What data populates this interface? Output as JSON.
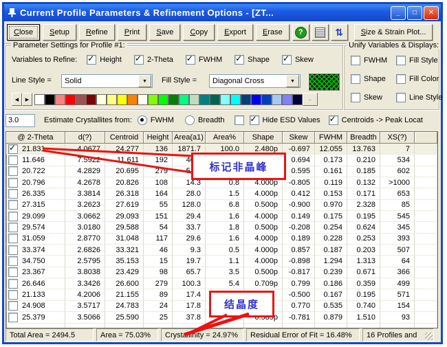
{
  "window": {
    "title": "Current Profile Parameters & Refinement Options - [ZT...",
    "controls": {
      "minimize": "_",
      "maximize": "□",
      "close": "✕"
    }
  },
  "toolbar": {
    "buttons": [
      {
        "name": "close-button",
        "label": "Close",
        "default": true
      },
      {
        "name": "setup-button",
        "label": "Setup"
      },
      {
        "name": "refine-button",
        "label": "Refine"
      },
      {
        "name": "print-button",
        "label": "Print"
      },
      {
        "name": "save-button",
        "label": "Save"
      },
      {
        "name": "copy-button",
        "label": "Copy"
      },
      {
        "name": "export-button",
        "label": "Export"
      },
      {
        "name": "erase-button",
        "label": "Erase"
      }
    ],
    "help_glyph": "?",
    "size_strain_label": "Size & Strain Plot..."
  },
  "param_group": {
    "title": "Parameter Settings for Profile #1:",
    "variables_label": "Variables to Refine:",
    "variables": [
      {
        "label": "Height",
        "checked": true
      },
      {
        "label": "2-Theta",
        "checked": true
      },
      {
        "label": "FWHM",
        "checked": true
      },
      {
        "label": "Shape",
        "checked": true
      },
      {
        "label": "Skew",
        "checked": true
      }
    ],
    "line_style_label": "Line Style =",
    "line_style_value": "Solid",
    "fill_style_label": "Fill Style =",
    "fill_style_value": "Diagonal Cross",
    "swatch": {
      "bg": "#000000",
      "line": "#00B400"
    },
    "palette": [
      "#FFFFFF",
      "#000000",
      "#FF8080",
      "#FF0000",
      "#A05050",
      "#800000",
      "#FFFFE0",
      "#FFFF80",
      "#FFFF00",
      "#FF8000",
      "#FFFFF0",
      "#80FF00",
      "#00FF00",
      "#008000",
      "#00FF80",
      "#C0DCC0",
      "#008080",
      "#006450",
      "#80FFFF",
      "#00FFFF",
      "#004080",
      "#0000FF",
      "#0040C0",
      "#A8C8F0",
      "#8080FF",
      "#000040"
    ],
    "palette_more_label": ".."
  },
  "unify_group": {
    "title": "Unify Variables & Displays:",
    "items": [
      {
        "label": "FWHM",
        "checked": false
      },
      {
        "label": "Fill Style",
        "checked": false
      },
      {
        "label": "Shape",
        "checked": false
      },
      {
        "label": "Fill Color",
        "checked": false
      },
      {
        "label": "Skew",
        "checked": false
      },
      {
        "label": "Line Style",
        "checked": false
      }
    ]
  },
  "estimate_row": {
    "value": "3.0",
    "label": "Estimate Crystallites from:",
    "radios": [
      {
        "label": "FWHM",
        "selected": true
      },
      {
        "label": "Breadth",
        "selected": false
      }
    ],
    "lone_checkbox_checked": false,
    "hide_esd": {
      "label": "Hide ESD Values",
      "checked": true
    },
    "centroids": {
      "label": "Centroids -> Peak Locat",
      "checked": true
    }
  },
  "table": {
    "headers": [
      "@ 2-Theta",
      "d(?)",
      "Centroid",
      "Height",
      "Area(a1)",
      "Area%",
      "Shape",
      "Skew",
      "FWHM",
      "Breadth",
      "XS(?)"
    ],
    "rows": [
      {
        "checked": true,
        "cells": [
          "21.831",
          "4.0677",
          "24.277",
          "136",
          "1871.7",
          "100.0",
          "2.480p",
          "-0.697",
          "12.055",
          "13.763",
          "7"
        ]
      },
      {
        "checked": false,
        "cells": [
          "11.646",
          "7.5922",
          "11.611",
          "192",
          "40.3",
          "",
          "",
          "0.694",
          "0.173",
          "0.210",
          "534"
        ]
      },
      {
        "checked": false,
        "cells": [
          "20.722",
          "4.2829",
          "20.695",
          "279",
          "51.5",
          "",
          "",
          "0.595",
          "0.161",
          "0.185",
          "602"
        ]
      },
      {
        "checked": false,
        "cells": [
          "20.796",
          "4.2678",
          "20.826",
          "108",
          "14.3",
          "0.8",
          "4.000p",
          "-0.805",
          "0.119",
          "0.132",
          ">1000"
        ]
      },
      {
        "checked": false,
        "cells": [
          "26.335",
          "3.3814",
          "26.318",
          "164",
          "28.0",
          "1.5",
          "4.000p",
          "0.412",
          "0.153",
          "0.171",
          "653"
        ]
      },
      {
        "checked": false,
        "cells": [
          "27.315",
          "3.2623",
          "27.619",
          "55",
          "128.0",
          "6.8",
          "0.500p",
          "-0.900",
          "0.970",
          "2.328",
          "85"
        ]
      },
      {
        "checked": false,
        "cells": [
          "29.099",
          "3.0662",
          "29.093",
          "151",
          "29.4",
          "1.6",
          "4.000p",
          "0.149",
          "0.175",
          "0.195",
          "545"
        ]
      },
      {
        "checked": false,
        "cells": [
          "29.574",
          "3.0180",
          "29.588",
          "54",
          "33.7",
          "1.8",
          "0.500p",
          "-0.208",
          "0.254",
          "0.624",
          "345"
        ]
      },
      {
        "checked": false,
        "cells": [
          "31.059",
          "2.8770",
          "31.048",
          "117",
          "29.6",
          "1.6",
          "4.000p",
          "0.189",
          "0.228",
          "0.253",
          "393"
        ]
      },
      {
        "checked": false,
        "cells": [
          "33.374",
          "2.6826",
          "33.321",
          "46",
          "9.3",
          "0.5",
          "4.000p",
          "0.857",
          "0.187",
          "0.203",
          "507"
        ]
      },
      {
        "checked": false,
        "cells": [
          "34.750",
          "2.5795",
          "35.153",
          "15",
          "19.7",
          "1.1",
          "4.000p",
          "-0.898",
          "1.294",
          "1.313",
          "64"
        ]
      },
      {
        "checked": false,
        "cells": [
          "23.367",
          "3.8038",
          "23.429",
          "98",
          "65.7",
          "3.5",
          "0.500p",
          "-0.817",
          "0.239",
          "0.671",
          "366"
        ]
      },
      {
        "checked": false,
        "cells": [
          "26.646",
          "3.3426",
          "26.600",
          "279",
          "100.3",
          "5.4",
          "0.709p",
          "0.799",
          "0.186",
          "0.359",
          "499"
        ]
      },
      {
        "checked": false,
        "cells": [
          "21.133",
          "4.2006",
          "21.155",
          "89",
          "17.4",
          "",
          "",
          "-0.500",
          "0.167",
          "0.195",
          "571"
        ]
      },
      {
        "checked": false,
        "cells": [
          "24.908",
          "3.5717",
          "24.783",
          "24",
          "17.8",
          "",
          "",
          "0.770",
          "0.535",
          "0.740",
          "154"
        ]
      },
      {
        "checked": false,
        "cells": [
          "25.379",
          "3.5066",
          "25.590",
          "25",
          "37.8",
          "",
          "0.585p",
          "-0.781",
          "0.879",
          "1.510",
          "93"
        ]
      }
    ]
  },
  "status_bar": {
    "items": [
      "Total Area = 2494.5",
      "Area = 75.03%",
      "Crystallinity = 24.97%",
      "Residual Error of Fit = 16.48%",
      "16 Profiles and"
    ]
  },
  "annotations": {
    "amorphous_label": "标记非晶峰",
    "crystallinity_label": "结晶度",
    "color": "#EE1111",
    "text_color": "#3333CC"
  }
}
